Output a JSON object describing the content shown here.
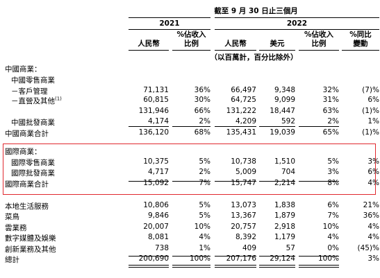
{
  "header": {
    "period": "截至 9 月 30 日止三個月",
    "year_2021": "2021",
    "year_2022": "2022",
    "col_rmb_2021": "人民幣",
    "col_pct_2021": [
      "%佔收入",
      "比例"
    ],
    "col_rmb_2022": "人民幣",
    "col_usd_2022": "美元",
    "col_pct_2022": [
      "%佔收入",
      "比例"
    ],
    "col_yoy": [
      "%同比",
      "變動"
    ],
    "units": "（以百萬計，百分比除外）"
  },
  "rows": [
    {
      "label": "中國商業：",
      "indent": 0,
      "values": []
    },
    {
      "label": "中國零售商業",
      "indent": 1,
      "values": []
    },
    {
      "label": "－客戶管理",
      "indent": 1,
      "values": [
        "71,131",
        "36%",
        "66,497",
        "9,348",
        "32%",
        "(7)%"
      ]
    },
    {
      "label": "－直營及其他",
      "sup": "(1)",
      "indent": 1,
      "values": [
        "60,815",
        "30%",
        "64,725",
        "9,099",
        "31%",
        "6%"
      ]
    },
    {
      "label": "",
      "indent": 1,
      "values": [
        "131,946",
        "66%",
        "131,222",
        "18,447",
        "63%",
        "(1)%"
      ]
    },
    {
      "label": "中國批發商業",
      "indent": 1,
      "values": [
        "4,174",
        "2%",
        "4,209",
        "592",
        "2%",
        "1%"
      ]
    },
    {
      "label": "中國商業合計",
      "indent": 0,
      "values": [
        "136,120",
        "68%",
        "135,431",
        "19,039",
        "65%",
        "(1)%"
      ]
    },
    {
      "label": "國際商業：",
      "indent": 0,
      "values": []
    },
    {
      "label": "國際零售商業",
      "indent": 1,
      "values": [
        "10,375",
        "5%",
        "10,738",
        "1,510",
        "5%",
        "3%"
      ]
    },
    {
      "label": "國際批發商業",
      "indent": 1,
      "values": [
        "4,717",
        "2%",
        "5,009",
        "704",
        "3%",
        "6%"
      ]
    },
    {
      "label": "國際商業合計",
      "indent": 0,
      "values": [
        "15,092",
        "7%",
        "15,747",
        "2,214",
        "8%",
        "4%"
      ]
    },
    {
      "label": "本地生活服務",
      "indent": 0,
      "values": [
        "10,806",
        "5%",
        "13,073",
        "1,838",
        "6%",
        "21%"
      ]
    },
    {
      "label": "菜鳥",
      "indent": 0,
      "values": [
        "9,846",
        "5%",
        "13,367",
        "1,879",
        "7%",
        "36%"
      ]
    },
    {
      "label": "雲業務",
      "indent": 0,
      "values": [
        "20,007",
        "10%",
        "20,757",
        "2,918",
        "10%",
        "4%"
      ]
    },
    {
      "label": "數字媒體及娛樂",
      "indent": 0,
      "values": [
        "8,081",
        "4%",
        "8,392",
        "1,179",
        "4%",
        "4%"
      ]
    },
    {
      "label": "創新業務及其他",
      "indent": 0,
      "values": [
        "738",
        "1%",
        "409",
        "57",
        "0%",
        "(45)%"
      ]
    },
    {
      "label": "總計",
      "indent": 0,
      "values": [
        "200,690",
        "100%",
        "207,176",
        "29,124",
        "100%",
        "3%"
      ]
    }
  ],
  "highlight_color": "#e0282e"
}
